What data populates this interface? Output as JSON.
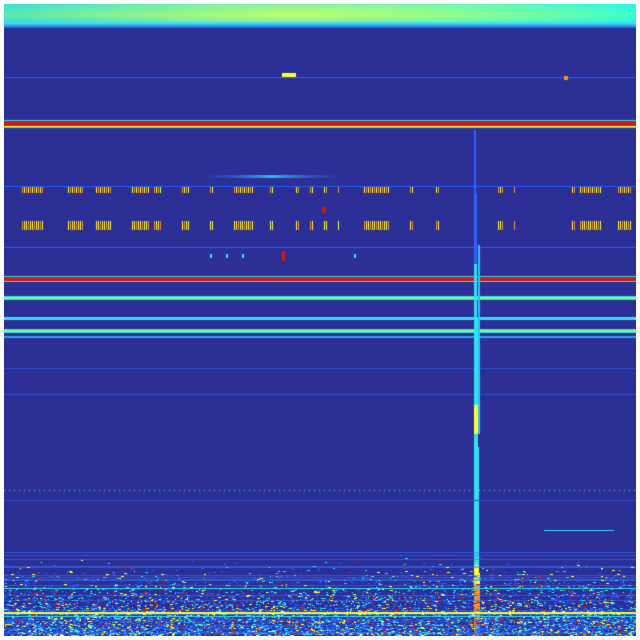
{
  "heatmap": {
    "colormap": "jet",
    "colors": {
      "background": "#2b2f96",
      "low": "#1f2ea8",
      "blue": "#2060ff",
      "cyan": "#30e0f0",
      "green": "#80ff80",
      "yellow": "#ffff30",
      "orange": "#ff9020",
      "red": "#d01818"
    }
  }
}
